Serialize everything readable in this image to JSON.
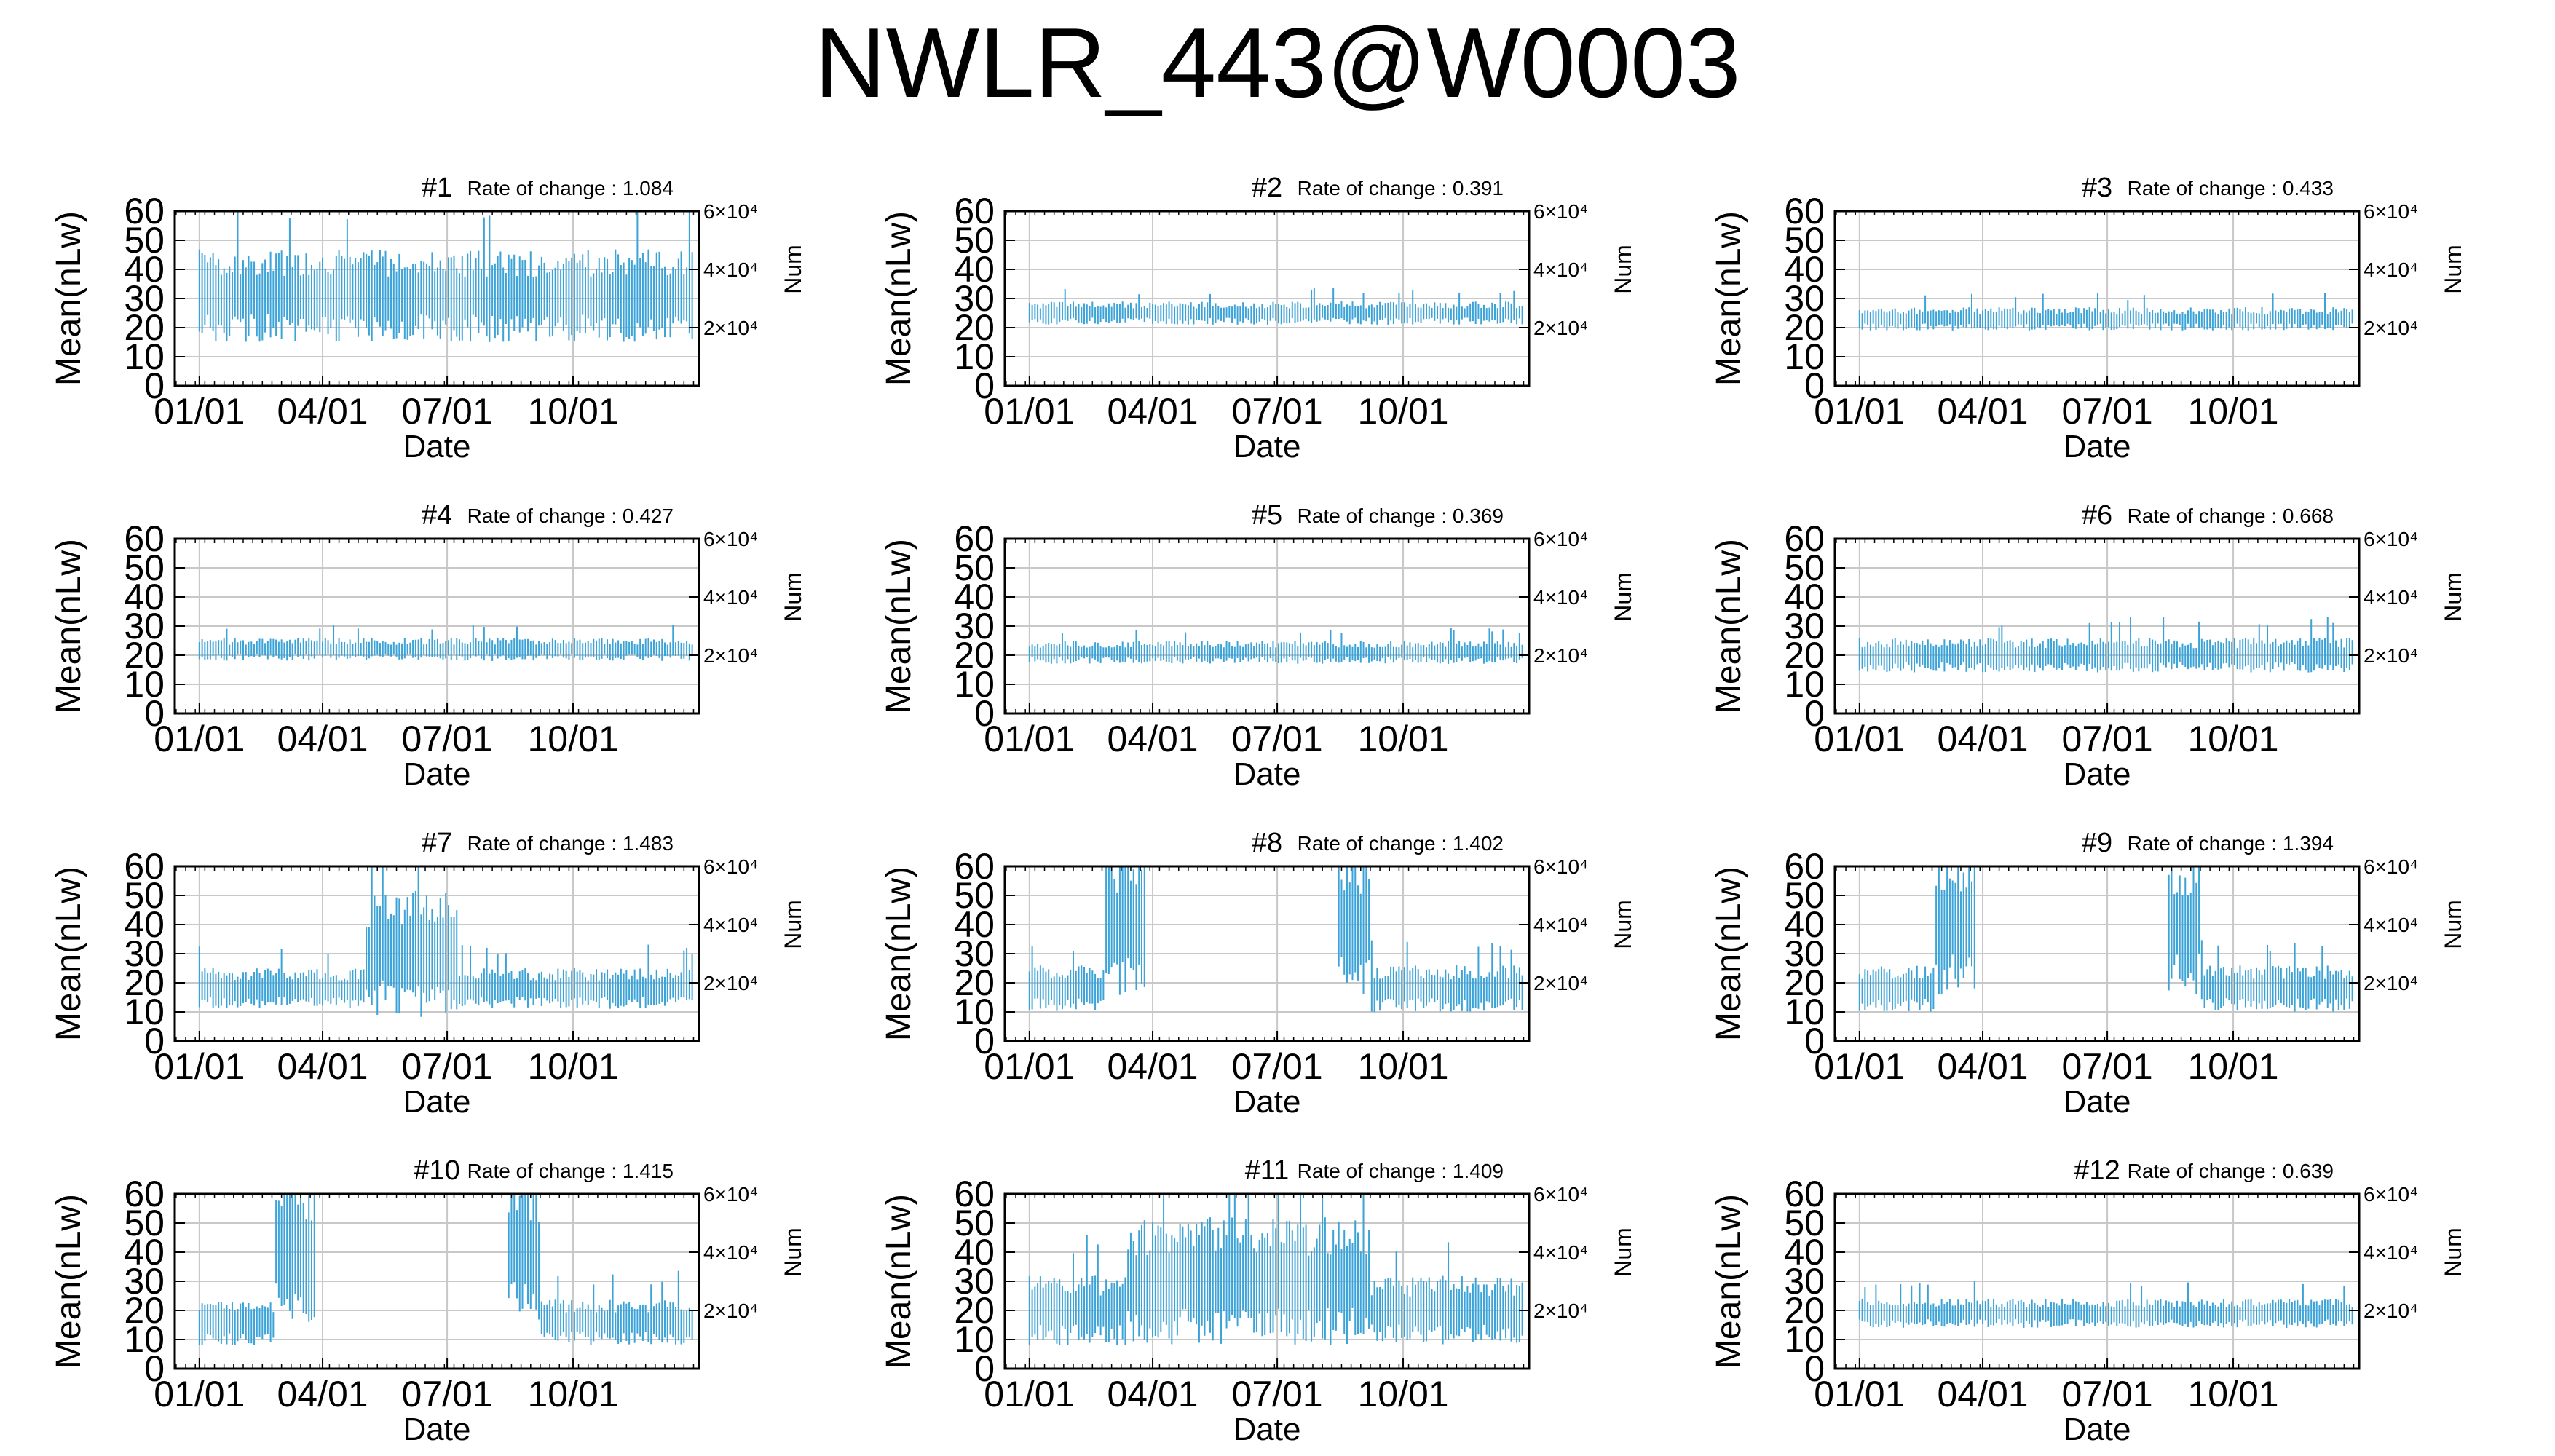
{
  "figure": {
    "title": "NWLR_443@W0003",
    "line_color": "#3ba3d8",
    "grid_color": "#c8c8c8",
    "text_color": "#000000"
  },
  "axis_template": {
    "type": "line",
    "xlabel": "Date",
    "ylabel": "Mean(nLw)",
    "y2label": "Num",
    "x_ticks": [
      "01/01",
      "04/01",
      "07/01",
      "10/01"
    ],
    "x_tick_days": [
      0,
      90,
      181,
      273
    ],
    "xlim_days": [
      -18,
      365
    ],
    "y_ticks": [
      0,
      10,
      20,
      30,
      40,
      50,
      60
    ],
    "ylim": [
      0,
      60
    ],
    "y2_ticks": [
      "2×10⁴",
      "4×10⁴",
      "6×10⁴"
    ],
    "y2_values": [
      20000,
      40000,
      60000
    ],
    "y2lim": [
      0,
      60000
    ],
    "rate_prefix": "Rate of change : ",
    "grid": true
  },
  "chart_data": [
    {
      "type": "line",
      "title": "#1",
      "rate_of_change": "1.084",
      "series": [
        {
          "center": 31,
          "spread": 16,
          "pattern": "full"
        }
      ]
    },
    {
      "type": "line",
      "title": "#2",
      "rate_of_change": "0.391",
      "series": [
        {
          "center": 25,
          "spread": 4,
          "pattern": "full"
        }
      ]
    },
    {
      "type": "line",
      "title": "#3",
      "rate_of_change": "0.433",
      "series": [
        {
          "center": 23,
          "spread": 4,
          "pattern": "full"
        }
      ]
    },
    {
      "type": "line",
      "title": "#4",
      "rate_of_change": "0.427",
      "series": [
        {
          "center": 22,
          "spread": 4,
          "pattern": "full"
        }
      ]
    },
    {
      "type": "line",
      "title": "#5",
      "rate_of_change": "0.369",
      "series": [
        {
          "center": 21,
          "spread": 4,
          "pattern": "full"
        }
      ]
    },
    {
      "type": "line",
      "title": "#6",
      "rate_of_change": "0.668",
      "series": [
        {
          "center": 20,
          "spread": 6,
          "pattern": "full"
        }
      ]
    },
    {
      "type": "line",
      "title": "#7",
      "rate_of_change": "1.483",
      "series": [
        {
          "center": 18,
          "spread": 7,
          "pattern": "spike-mid"
        }
      ]
    },
    {
      "type": "line",
      "title": "#8",
      "rate_of_change": "1.402",
      "series": [
        {
          "center": 18,
          "spread": 8,
          "pattern": "gap-mid"
        }
      ]
    },
    {
      "type": "line",
      "title": "#9",
      "rate_of_change": "1.394",
      "series": [
        {
          "center": 18,
          "spread": 8,
          "pattern": "gap-mid"
        }
      ]
    },
    {
      "type": "line",
      "title": "#10",
      "rate_of_change": "1.415",
      "series": [
        {
          "center": 16,
          "spread": 8,
          "pattern": "gap-mid"
        }
      ]
    },
    {
      "type": "line",
      "title": "#11",
      "rate_of_change": "1.409",
      "series": [
        {
          "center": 20,
          "spread": 12,
          "pattern": "hump-mid"
        }
      ]
    },
    {
      "type": "line",
      "title": "#12",
      "rate_of_change": "0.639",
      "series": [
        {
          "center": 19,
          "spread": 5,
          "pattern": "full"
        }
      ]
    }
  ]
}
